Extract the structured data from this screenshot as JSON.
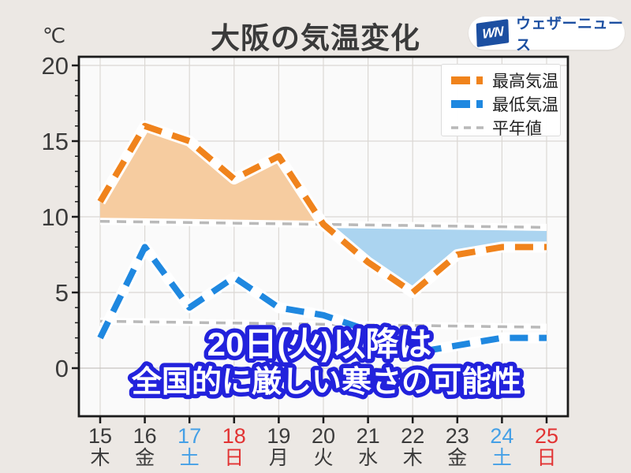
{
  "page": {
    "background": "#ECE8E4"
  },
  "header": {
    "unit_label": "℃",
    "title": "大阪の気温変化",
    "logo": {
      "mark": "WN",
      "text": "ウェザーニュース",
      "color": "#1C4FA1"
    }
  },
  "legend": {
    "items": [
      {
        "label": "最高気温",
        "color": "#F0831C",
        "style": "thick"
      },
      {
        "label": "最低気温",
        "color": "#1F88E0",
        "style": "thick"
      },
      {
        "label": "平年値",
        "color": "#B9B9B9",
        "style": "thin"
      }
    ]
  },
  "annotation": {
    "line1": "20日(火)以降は",
    "line2": "全国的に厳しい寒さの可能性",
    "fill": "#FFFFFF",
    "outline": "#2222DC"
  },
  "chart_data": {
    "type": "line",
    "title": "大阪の気温変化",
    "ylabel": "℃",
    "ylim": [
      -3.2,
      20.6
    ],
    "yticks": [
      0,
      5,
      10,
      15,
      20
    ],
    "grid": true,
    "legend_position": "top-right",
    "x_days": [
      15,
      16,
      17,
      18,
      19,
      20,
      21,
      22,
      23,
      24,
      25
    ],
    "x_weekdays": [
      "木",
      "金",
      "土",
      "日",
      "月",
      "火",
      "水",
      "木",
      "金",
      "土",
      "日"
    ],
    "x_day_styles": [
      "wd",
      "wd",
      "sat",
      "sun",
      "wd",
      "wd",
      "wd",
      "wd",
      "wd",
      "sat",
      "sun"
    ],
    "series": [
      {
        "name": "最高気温",
        "role": "max",
        "color": "#F0831C",
        "dash": "thick",
        "values": [
          11,
          16,
          15,
          12.5,
          14,
          9.5,
          7,
          5,
          7.5,
          8,
          8
        ]
      },
      {
        "name": "最低気温",
        "role": "min",
        "color": "#1F88E0",
        "dash": "thick",
        "values": [
          2,
          8,
          4,
          6,
          4,
          3.5,
          2.5,
          1,
          1.5,
          2,
          2
        ]
      },
      {
        "name": "平年値(最高)",
        "role": "norm_max",
        "color": "#B9B9B9",
        "dash": "thin",
        "values": [
          9.7,
          9.66,
          9.62,
          9.58,
          9.54,
          9.5,
          9.46,
          9.42,
          9.38,
          9.34,
          9.3
        ]
      },
      {
        "name": "平年値(最低)",
        "role": "norm_min",
        "color": "#B9B9B9",
        "dash": "thin",
        "values": [
          3.1,
          3.06,
          3.02,
          2.98,
          2.94,
          2.9,
          2.86,
          2.82,
          2.78,
          2.74,
          2.7
        ]
      }
    ],
    "fills": [
      {
        "series": "max",
        "baseline": "norm_max",
        "above_color": "#F6CCA0",
        "below_color": "#ABD4F0"
      }
    ],
    "colors": {
      "plot_bg": "#FAFAFA",
      "grid": "#DBD8D4",
      "grid_zero": "#C7C4C0",
      "axis": "#1B1B1B",
      "tick_text": "#3B3B3B",
      "sat": "#45A0E6",
      "sun": "#E23333",
      "wd": "#3B3B3B",
      "casing": "#FFFFFF"
    }
  }
}
